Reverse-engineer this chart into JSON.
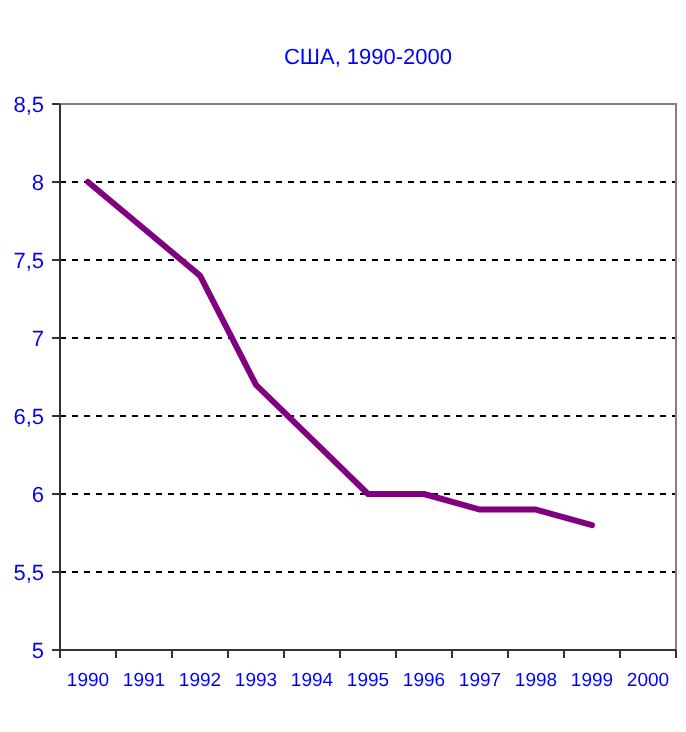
{
  "chart_data": {
    "type": "line",
    "title": "США, 1990-2000",
    "categories": [
      "1990",
      "1991",
      "1992",
      "1993",
      "1994",
      "1995",
      "1996",
      "1997",
      "1998",
      "1999",
      "2000"
    ],
    "series": [
      {
        "color": "#800080",
        "values": [
          8,
          7.7,
          7.4,
          6.7,
          6.35,
          6.0,
          6.0,
          5.9,
          5.9,
          5.8,
          null
        ]
      }
    ],
    "ylim": [
      5,
      8.5
    ],
    "yticks": [
      5,
      {
        "value": 5.5,
        "label": "5,5"
      },
      6,
      {
        "value": 6.5,
        "label": "6,5"
      },
      7,
      {
        "value": 7.5,
        "label": "7,5"
      },
      8,
      {
        "value": 8.5,
        "label": "8,5"
      }
    ],
    "grid": "y",
    "marker": "none",
    "line_style": "solid"
  }
}
